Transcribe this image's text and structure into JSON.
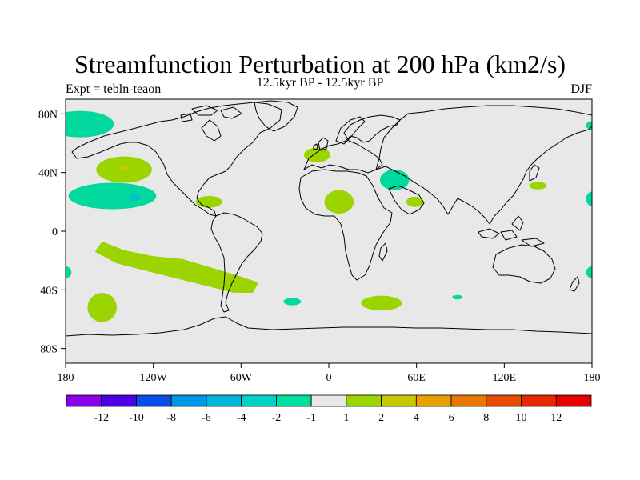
{
  "header": {
    "title": "Streamfunction Perturbation at 200 hPa (km2/s)",
    "left_string": "Expt = tebln-teaon",
    "center_string": "12.5kyr BP - 12.5kyr BP",
    "right_string": "DJF"
  },
  "map": {
    "projection": "cylindrical-equidistant",
    "lon_range": [
      -180,
      180
    ],
    "lat_range": [
      -90,
      90
    ],
    "background_color": "#e8e8e8",
    "lat_ticks": [
      {
        "value": 80,
        "label": "80N"
      },
      {
        "value": 40,
        "label": "40N"
      },
      {
        "value": 0,
        "label": "0"
      },
      {
        "value": -40,
        "label": "40S"
      },
      {
        "value": -80,
        "label": "80S"
      }
    ],
    "lon_ticks": [
      {
        "value": -180,
        "label": "180"
      },
      {
        "value": -120,
        "label": "120W"
      },
      {
        "value": -60,
        "label": "60W"
      },
      {
        "value": 0,
        "label": "0"
      },
      {
        "value": 60,
        "label": "60E"
      },
      {
        "value": 120,
        "label": "120E"
      },
      {
        "value": 180,
        "label": "180"
      }
    ],
    "anomaly_regions": [
      {
        "name": "anomaly-n-atlantic-pacific-arctic",
        "lon": -170,
        "lat": 73,
        "rx": 23,
        "ry": 9,
        "color": "#00d89e"
      },
      {
        "name": "anomaly-ne-pacific-high",
        "lon": -140,
        "lat": 42,
        "rx": 19,
        "ry": 9,
        "color": "#9bd400"
      },
      {
        "name": "anomaly-ne-pacific-core",
        "lon": -140,
        "lat": 43,
        "rx": 3,
        "ry": 1.5,
        "color": "#c8c800"
      },
      {
        "name": "anomaly-subtropical-pacific-low",
        "lon": -148,
        "lat": 24,
        "rx": 30,
        "ry": 9,
        "color": "#00d89e"
      },
      {
        "name": "anomaly-subtropical-pacific-core",
        "lon": -133,
        "lat": 23,
        "rx": 4,
        "ry": 2.5,
        "color": "#00c0c8"
      },
      {
        "name": "anomaly-caribbean",
        "lon": -82,
        "lat": 20,
        "rx": 9,
        "ry": 4,
        "color": "#9bd400"
      },
      {
        "name": "anomaly-north-atlantic",
        "lon": -8,
        "lat": 52,
        "rx": 9,
        "ry": 5,
        "color": "#9bd400"
      },
      {
        "name": "anomaly-north-africa",
        "lon": 7,
        "lat": 20,
        "rx": 10,
        "ry": 8,
        "color": "#9bd400"
      },
      {
        "name": "anomaly-middle-east",
        "lon": 45,
        "lat": 35,
        "rx": 10,
        "ry": 7,
        "color": "#00d89e"
      },
      {
        "name": "anomaly-arabia",
        "lon": 59,
        "lat": 20,
        "rx": 6,
        "ry": 3.5,
        "color": "#9bd400"
      },
      {
        "name": "anomaly-nw-pacific",
        "lon": 143,
        "lat": 31,
        "rx": 6,
        "ry": 2.5,
        "color": "#9bd400"
      },
      {
        "name": "anomaly-east-edge-arctic",
        "lon": 180,
        "lat": 72,
        "rx": 4,
        "ry": 3,
        "color": "#00d89e"
      },
      {
        "name": "anomaly-east-edge-tropics",
        "lon": 180,
        "lat": 22,
        "rx": 4,
        "ry": 5,
        "color": "#00d89e"
      },
      {
        "name": "anomaly-east-edge-south",
        "lon": 180,
        "lat": -28,
        "rx": 4,
        "ry": 4,
        "color": "#00d89e"
      },
      {
        "name": "anomaly-west-edge-south",
        "lon": -180,
        "lat": -28,
        "rx": 4,
        "ry": 4,
        "color": "#00d89e"
      },
      {
        "name": "anomaly-south-pacific-sw",
        "lon": -155,
        "lat": -52,
        "rx": 10,
        "ry": 10,
        "color": "#9bd400"
      },
      {
        "name": "anomaly-south-atlantic-small",
        "lon": -25,
        "lat": -48,
        "rx": 6,
        "ry": 2.5,
        "color": "#00d89e"
      },
      {
        "name": "anomaly-south-indian",
        "lon": 36,
        "lat": -49,
        "rx": 14,
        "ry": 5,
        "color": "#9bd400"
      },
      {
        "name": "anomaly-south-indian-small",
        "lon": 88,
        "lat": -45,
        "rx": 3.5,
        "ry": 1.5,
        "color": "#00d89e"
      }
    ],
    "anomaly_band": {
      "name": "anomaly-south-pacific-band",
      "color": "#9bd400",
      "points": [
        [
          -155,
          -7
        ],
        [
          -140,
          -13
        ],
        [
          -120,
          -17
        ],
        [
          -100,
          -19
        ],
        [
          -80,
          -25
        ],
        [
          -60,
          -31
        ],
        [
          -48,
          -35
        ],
        [
          -52,
          -42
        ],
        [
          -65,
          -42
        ],
        [
          -85,
          -37
        ],
        [
          -105,
          -32
        ],
        [
          -125,
          -27
        ],
        [
          -145,
          -22
        ],
        [
          -160,
          -14
        ]
      ]
    }
  },
  "colorbar": {
    "labels": [
      "-12",
      "-10",
      "-8",
      "-6",
      "-4",
      "-2",
      "-1",
      "1",
      "2",
      "4",
      "6",
      "8",
      "10",
      "12"
    ],
    "colors": [
      "#8b00e8",
      "#4a00e0",
      "#0a4de6",
      "#0096e6",
      "#00b4dc",
      "#00d2c8",
      "#00e0a0",
      "#e8e8e8",
      "#9bd400",
      "#c8c800",
      "#e6a000",
      "#e87800",
      "#e84a00",
      "#e82800",
      "#e80000"
    ]
  }
}
